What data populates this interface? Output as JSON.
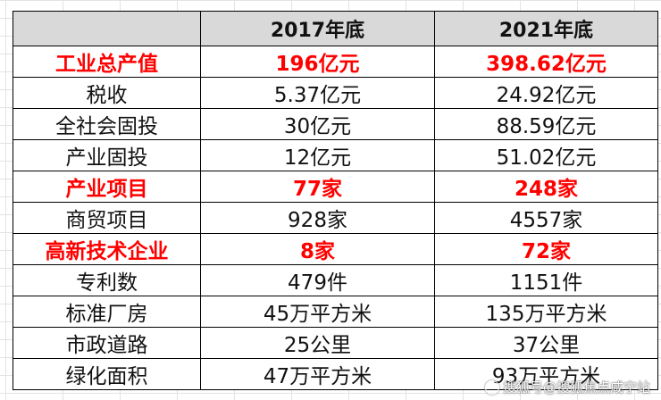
{
  "table": {
    "headers": [
      "",
      "2017年底",
      "2021年底"
    ],
    "rows": [
      {
        "label": "工业总产值",
        "v2017": "196亿元",
        "v2021": "398.62亿元",
        "highlight": true
      },
      {
        "label": "税收",
        "v2017": "5.37亿元",
        "v2021": "24.92亿元",
        "highlight": false
      },
      {
        "label": "全社会固投",
        "v2017": "30亿元",
        "v2021": "88.59亿元",
        "highlight": false
      },
      {
        "label": "产业固投",
        "v2017": "12亿元",
        "v2021": "51.02亿元",
        "highlight": false
      },
      {
        "label": "产业项目",
        "v2017": "77家",
        "v2021": "248家",
        "highlight": true
      },
      {
        "label": "商贸项目",
        "v2017": "928家",
        "v2021": "4557家",
        "highlight": false
      },
      {
        "label": "高新技术企业",
        "v2017": "8家",
        "v2021": "72家",
        "highlight": true
      },
      {
        "label": "专利数",
        "v2017": "479件",
        "v2021": "1151件",
        "highlight": false
      },
      {
        "label": "标准厂房",
        "v2017": "45万平方米",
        "v2021": "135万平方米",
        "highlight": false
      },
      {
        "label": "市政道路",
        "v2017": "25公里",
        "v2021": "37公里",
        "highlight": false
      },
      {
        "label": "绿化面积",
        "v2017": "47万平方米",
        "v2021": "93万平方米",
        "highlight": false
      }
    ]
  },
  "colors": {
    "highlight_text": "#ff0000",
    "header_bg": "#d9d9d9",
    "border": "#000000"
  },
  "watermark": {
    "text": "搜狐号@搜狐焦点咸宁站",
    "icon": "sohu-logo-icon"
  }
}
